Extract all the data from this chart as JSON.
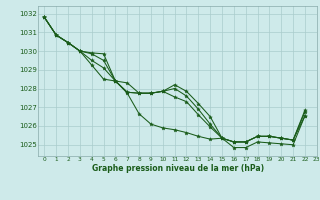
{
  "title": "Graphe pression niveau de la mer (hPa)",
  "bg_color": "#ceeaea",
  "grid_color": "#aacccc",
  "line_color": "#1a5c1a",
  "marker_color": "#1a5c1a",
  "xlim": [
    -0.5,
    23
  ],
  "ylim": [
    1024.4,
    1032.4
  ],
  "yticks": [
    1025,
    1026,
    1027,
    1028,
    1029,
    1030,
    1031,
    1032
  ],
  "xticks": [
    0,
    1,
    2,
    3,
    4,
    5,
    6,
    7,
    8,
    9,
    10,
    11,
    12,
    13,
    14,
    15,
    16,
    17,
    18,
    19,
    20,
    21,
    22,
    23
  ],
  "series": [
    [
      1031.8,
      1030.85,
      1030.45,
      1030.0,
      1029.9,
      1029.85,
      1028.4,
      1027.8,
      1027.75,
      1027.75,
      1027.85,
      1028.2,
      1027.85,
      1027.2,
      1026.5,
      1025.35,
      1025.15,
      1025.15,
      1025.45,
      1025.45,
      1025.35,
      1025.25,
      1026.85
    ],
    [
      1031.8,
      1030.85,
      1030.45,
      1030.0,
      1029.85,
      1029.5,
      1028.4,
      1028.3,
      1027.75,
      1027.75,
      1027.85,
      1028.0,
      1027.6,
      1026.9,
      1026.1,
      1025.35,
      1025.15,
      1025.15,
      1025.45,
      1025.45,
      1025.35,
      1025.25,
      1026.75
    ],
    [
      1031.8,
      1030.85,
      1030.45,
      1030.0,
      1029.5,
      1029.1,
      1028.4,
      1027.8,
      1027.75,
      1027.75,
      1027.85,
      1027.55,
      1027.3,
      1026.6,
      1025.95,
      1025.35,
      1024.85,
      1024.85,
      1025.15,
      1025.1,
      1025.05,
      1025.0,
      1026.55
    ],
    [
      1031.8,
      1030.85,
      1030.45,
      1030.0,
      1029.25,
      1028.5,
      1028.4,
      1027.75,
      1026.65,
      1026.1,
      1025.9,
      1025.8,
      1025.65,
      1025.45,
      1025.3,
      1025.35,
      1025.15,
      1025.15,
      1025.45,
      1025.45,
      1025.35,
      1025.25,
      1026.55
    ]
  ]
}
